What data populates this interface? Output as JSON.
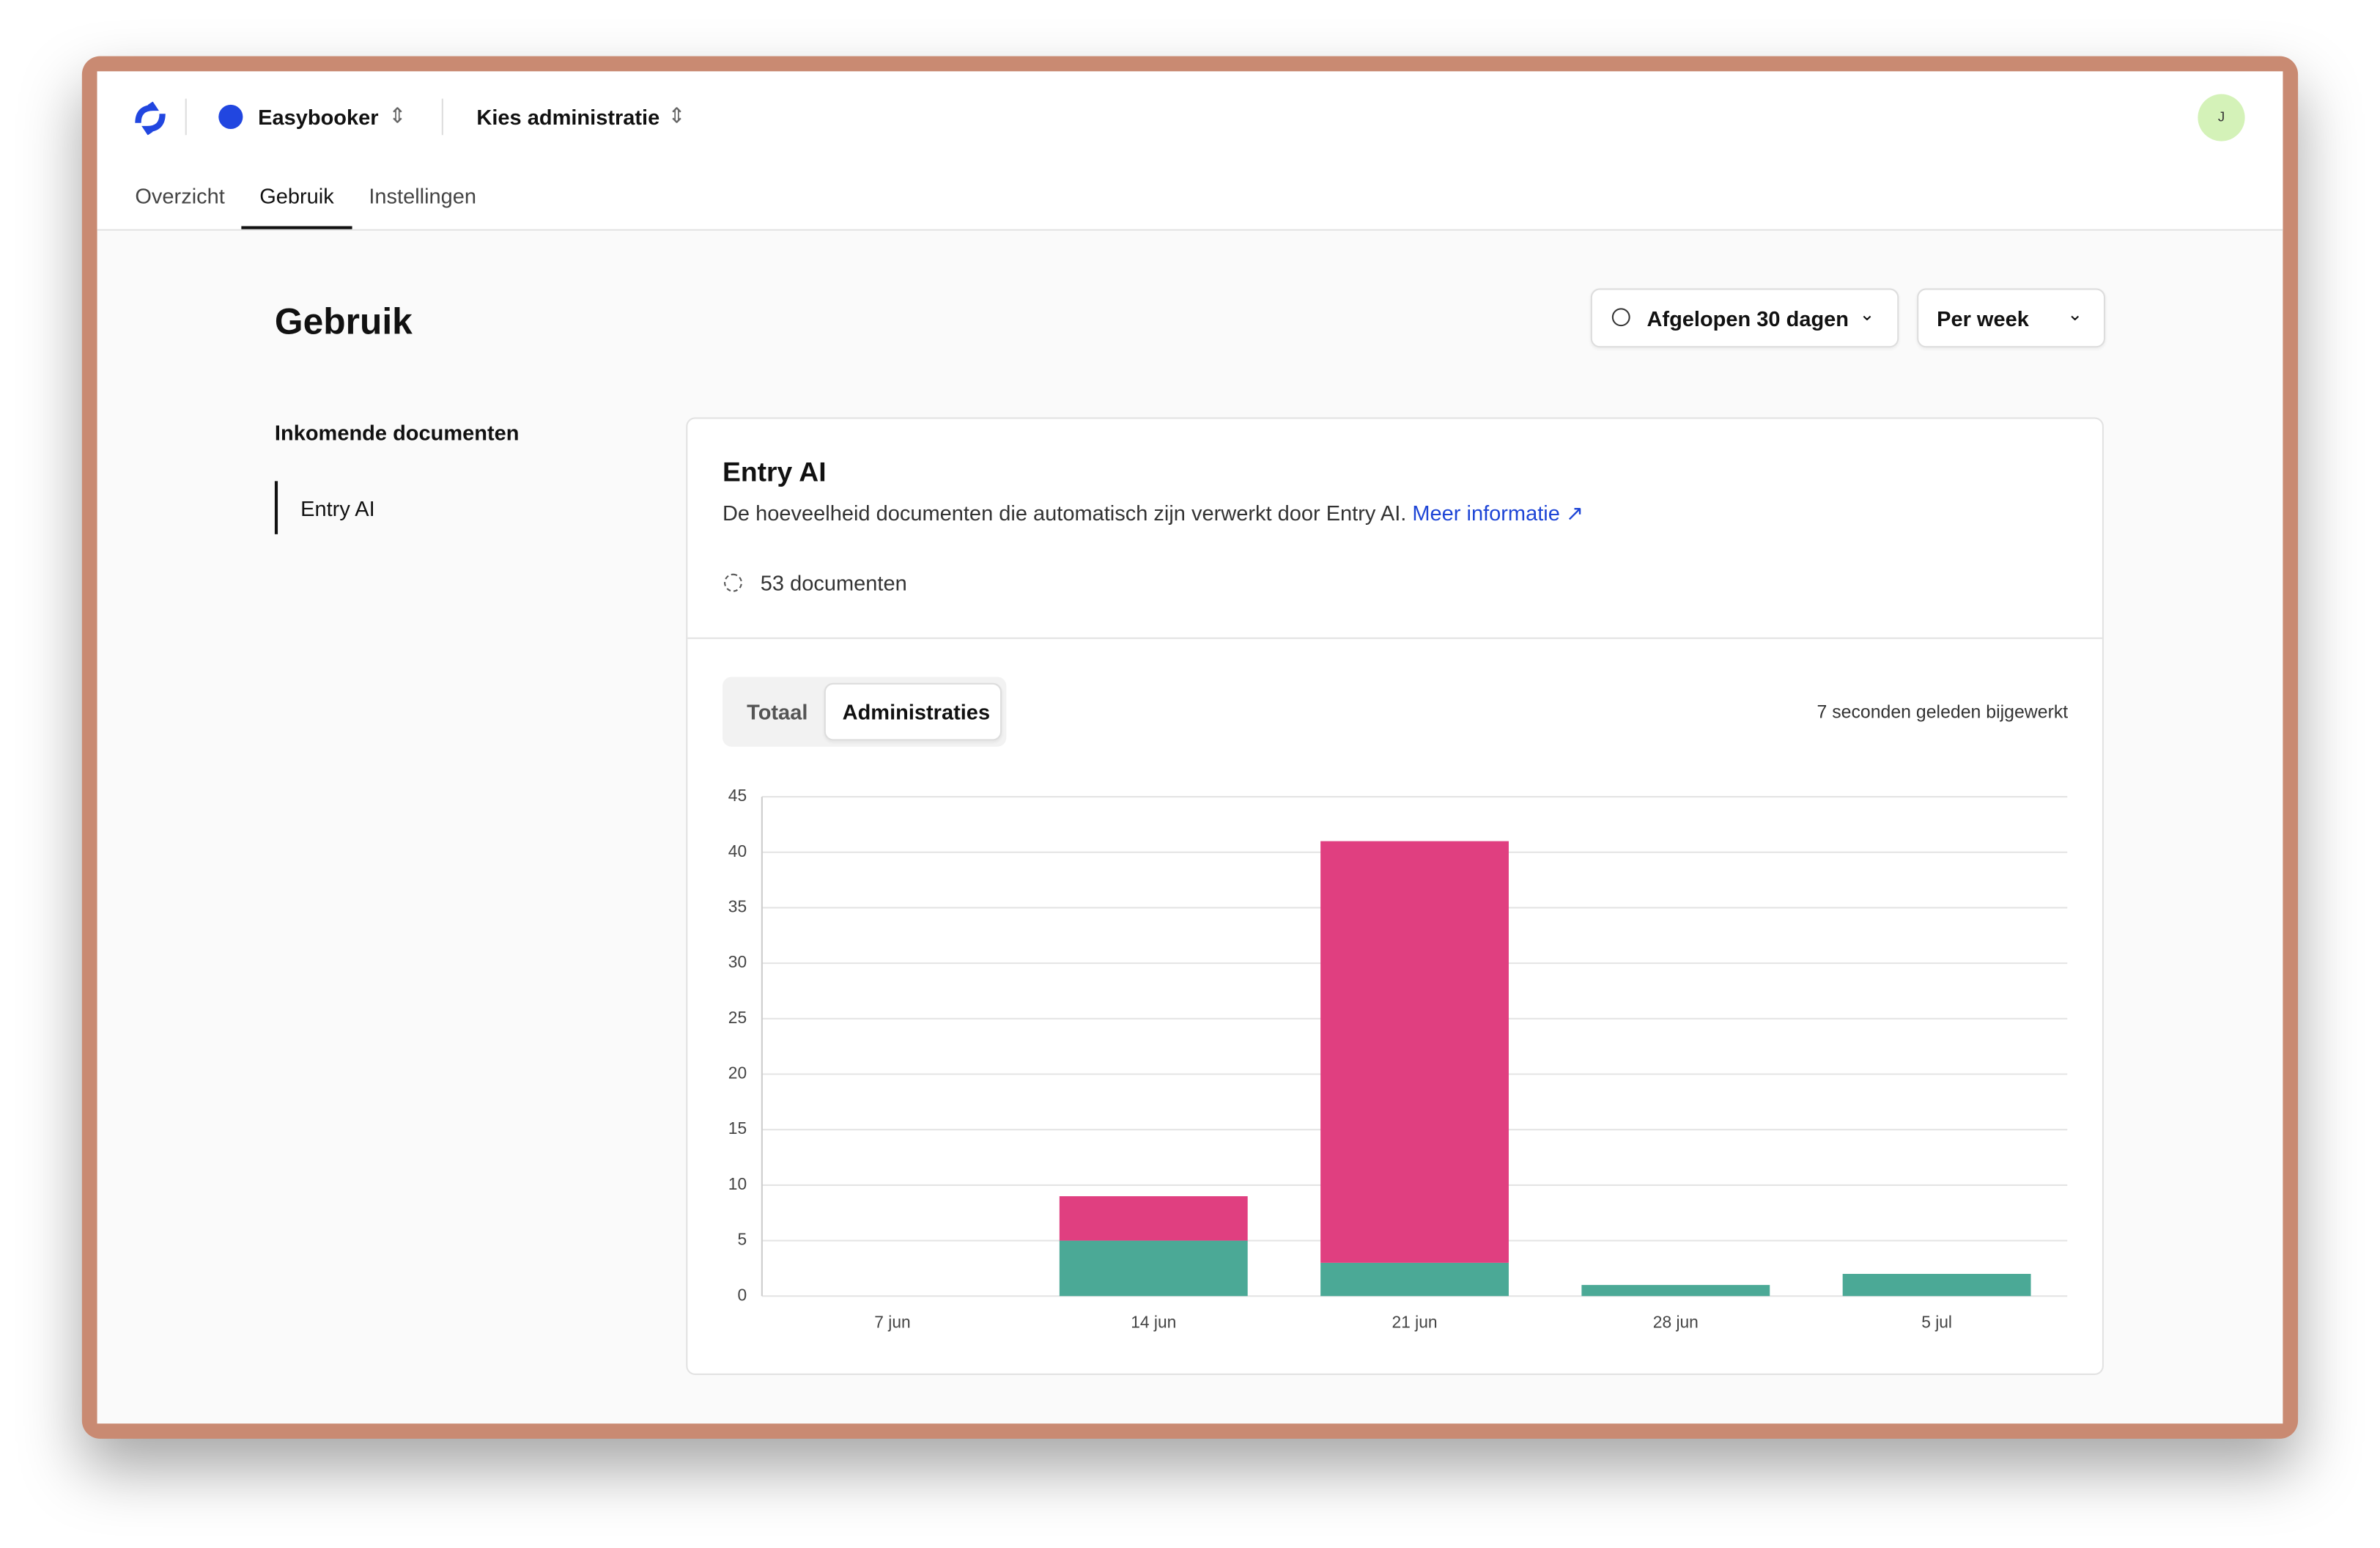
{
  "header": {
    "workspace": "Easybooker",
    "administration": "Kies administratie",
    "avatar": "J"
  },
  "tabs": [
    "Overzicht",
    "Gebruik",
    "Instellingen"
  ],
  "page": {
    "title": "Gebruik",
    "period": "Afgelopen 30 dagen",
    "interval": "Per week"
  },
  "sidebar": {
    "section": "Inkomende documenten",
    "item": "Entry AI"
  },
  "card": {
    "title": "Entry AI",
    "description": "De hoeveelheid documenten die automatisch zijn verwerkt door Entry AI.",
    "link": "Meer informatie",
    "count": "53 documenten",
    "toggle": [
      "Totaal",
      "Administraties"
    ],
    "updated": "7 seconden geleden bijgewerkt"
  },
  "chart_data": {
    "type": "stacked-bar",
    "categories": [
      "7 jun",
      "14 jun",
      "21 jun",
      "28 jun",
      "5 jul"
    ],
    "series": [
      {
        "color": "#4ba996",
        "values": [
          0,
          5,
          3,
          1,
          2
        ]
      },
      {
        "color": "#e03f80",
        "values": [
          0,
          4,
          38,
          0,
          0
        ]
      }
    ],
    "ylim": [
      0,
      45
    ],
    "yticks": [
      0,
      5,
      10,
      15,
      20,
      25,
      30,
      35,
      40,
      45
    ],
    "grid": true
  }
}
